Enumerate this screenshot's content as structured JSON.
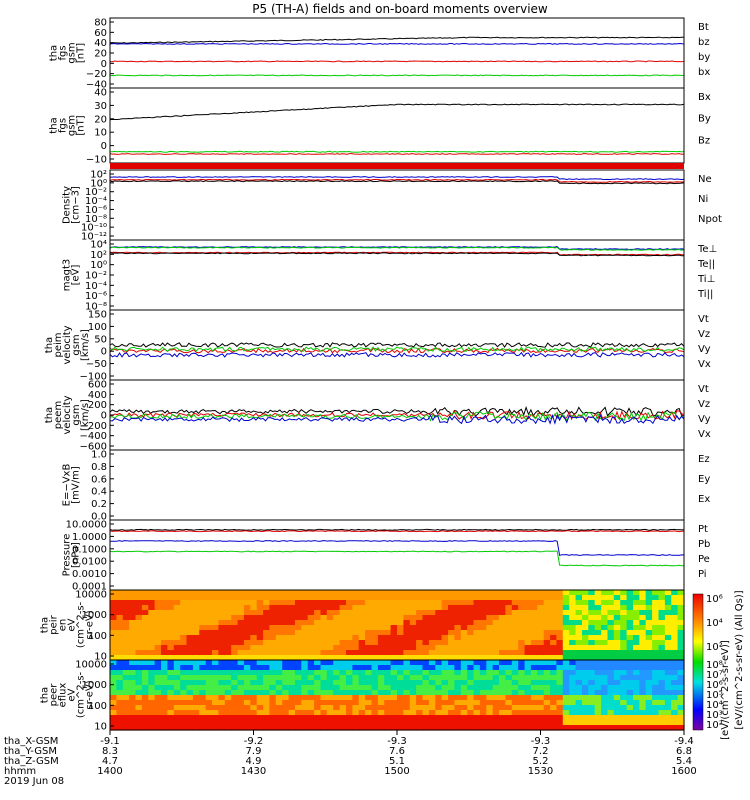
{
  "title": "P5 (TH-A) fields and on-board moments overview",
  "date_label": "2019 Jun 08",
  "colors": {
    "black": "#000000",
    "red": "#e00000",
    "green": "#00cc00",
    "blue": "#0000cc"
  },
  "chart_data": [
    {
      "type": "line",
      "ylabel": [
        "tha",
        "fgs",
        "gsm",
        "[nT]"
      ],
      "yticks": [
        "80",
        "60",
        "40",
        "20",
        "0",
        "−20",
        "−40"
      ],
      "series": [
        {
          "name": "Bt",
          "color": "#000000",
          "level": 42
        },
        {
          "name": "bz",
          "color": "#e00000",
          "level": 2
        },
        {
          "name": "by",
          "color": "#00cc00",
          "level": -15
        },
        {
          "name": "bx",
          "color": "#0000cc",
          "level": 43
        }
      ]
    },
    {
      "type": "line",
      "ylabel": [
        "tha",
        "fgs",
        "gsm",
        "[nT]"
      ],
      "yticks": [
        "40",
        "30",
        "20",
        "10",
        "0",
        "−10"
      ],
      "series": [
        {
          "name": "Bx",
          "color": "#000000",
          "level": 18
        },
        {
          "name": "By",
          "color": "#00cc00",
          "level": -5
        },
        {
          "name": "Bz",
          "color": "#e00000",
          "level": -8
        }
      ]
    },
    {
      "type": "line",
      "ylabel": [
        "Density",
        "[cm−3]"
      ],
      "yticks": [
        "10²",
        "10⁰",
        "10⁻²",
        "10⁻⁴",
        "10⁻⁶",
        "10⁻⁸",
        "10⁻¹⁰",
        "10⁻¹²"
      ],
      "series": [
        {
          "name": "Ne",
          "color": "#e00000"
        },
        {
          "name": "Ni",
          "color": "#000000"
        },
        {
          "name": "Npot",
          "color": "#0000cc"
        }
      ]
    },
    {
      "type": "line",
      "ylabel": [
        "magt3",
        "[eV]"
      ],
      "yticks": [
        "10⁴",
        "10²",
        "10⁰",
        "10⁻²",
        "10⁻⁴",
        "10⁻⁶",
        "10⁻⁸"
      ],
      "series": [
        {
          "name": "Te⊥",
          "color": "#e00000"
        },
        {
          "name": "Te||",
          "color": "#000000"
        },
        {
          "name": "Ti⊥",
          "color": "#0000cc"
        },
        {
          "name": "Ti||",
          "color": "#00cc00"
        }
      ]
    },
    {
      "type": "line",
      "ylabel": [
        "tha",
        "peim",
        "velocity",
        "gsm",
        "[km/s]"
      ],
      "yticks": [
        "150",
        "100",
        "50",
        "0",
        "−50",
        "−100"
      ],
      "series": [
        {
          "name": "Vt",
          "color": "#000000"
        },
        {
          "name": "Vz",
          "color": "#e00000"
        },
        {
          "name": "Vy",
          "color": "#00cc00"
        },
        {
          "name": "Vx",
          "color": "#0000cc"
        }
      ]
    },
    {
      "type": "line",
      "ylabel": [
        "tha",
        "peem",
        "velocity",
        "gsm",
        "[km/s]"
      ],
      "yticks": [
        "600",
        "400",
        "200",
        "0",
        "−200",
        "−400",
        "−600"
      ],
      "series": [
        {
          "name": "Vt",
          "color": "#000000"
        },
        {
          "name": "Vz",
          "color": "#e00000"
        },
        {
          "name": "Vy",
          "color": "#00cc00"
        },
        {
          "name": "Vx",
          "color": "#0000cc"
        }
      ]
    },
    {
      "type": "line",
      "ylabel": [
        "E=−VxB",
        "[mV/m]"
      ],
      "yticks": [
        "1.0",
        "0.8",
        "0.6",
        "0.4",
        "0.2",
        "0.0"
      ],
      "series": [
        {
          "name": "Ez",
          "color": "#e00000"
        },
        {
          "name": "Ey",
          "color": "#00cc00"
        },
        {
          "name": "Ex",
          "color": "#0000cc"
        }
      ]
    },
    {
      "type": "line",
      "ylabel": [
        "Pressure",
        "[nPa]"
      ],
      "yticks": [
        "10.0000",
        "1.0000",
        "0.1000",
        "0.0100",
        "0.0010",
        "0.0001"
      ],
      "series": [
        {
          "name": "Pt",
          "color": "#000000"
        },
        {
          "name": "Pb",
          "color": "#e00000"
        },
        {
          "name": "Pe",
          "color": "#00cc00"
        },
        {
          "name": "Pi",
          "color": "#0000cc"
        }
      ]
    },
    {
      "type": "heatmap",
      "ylabel": [
        "tha",
        "peir",
        "en",
        "eV",
        "(cm^2-s-",
        "sr-eV)"
      ],
      "yticks": [
        "10000",
        "1000",
        "100",
        "10"
      ]
    },
    {
      "type": "heatmap",
      "ylabel": [
        "tha",
        "peer",
        "eflux",
        "eV",
        "(cm^2-s-",
        "sr-eV)"
      ],
      "yticks": [
        "10000",
        "1000",
        "100",
        "10"
      ]
    }
  ],
  "colorbar": {
    "ticks": [
      "10⁸",
      "10⁷",
      "10⁶",
      "10⁵",
      "10⁴",
      "10³",
      "10²"
    ],
    "label": "[eV/(cm^2-s-sr-eV)]"
  },
  "colorbar_top": {
    "ticks": [
      "10⁶",
      "10⁴",
      "10²"
    ],
    "label": "[eV/(cm^2-s-sr-eV) (All Qs)]"
  },
  "x_axis": {
    "row_labels": [
      "tha_X-GSM",
      "tha_Y-GSM",
      "tha_Z-GSM",
      "hhmm"
    ],
    "columns": [
      {
        "x": "-9.1",
        "y": "8.3",
        "z": "4.7",
        "t": "1400"
      },
      {
        "x": "-9.2",
        "y": "7.9",
        "z": "4.9",
        "t": "1430"
      },
      {
        "x": "-9.3",
        "y": "7.6",
        "z": "5.1",
        "t": "1500"
      },
      {
        "x": "-9.3",
        "y": "7.2",
        "z": "5.2",
        "t": "1530"
      },
      {
        "x": "-9.4",
        "y": "6.8",
        "z": "5.4",
        "t": "1600"
      }
    ]
  }
}
